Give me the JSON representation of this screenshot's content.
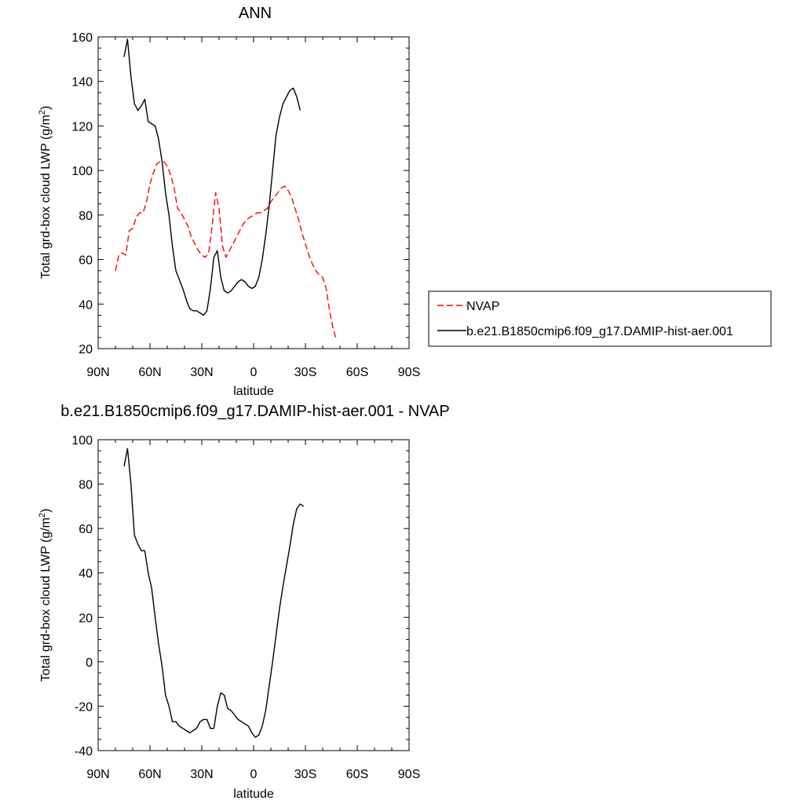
{
  "chart_data": [
    {
      "type": "line",
      "title": "ANN",
      "xlabel": "latitude",
      "ylabel": "Total grd-box cloud LWP (g/m",
      "ylabel_sup": "2",
      "ylabel_tail": ")",
      "xlim": [
        90,
        -90
      ],
      "ylim": [
        20,
        160
      ],
      "x_ticks": [
        90,
        60,
        30,
        0,
        -30,
        -60,
        -90
      ],
      "x_tick_labels": [
        "90N",
        "60N",
        "30N",
        "0",
        "30S",
        "60S",
        "90S"
      ],
      "y_ticks": [
        20,
        40,
        60,
        80,
        100,
        120,
        140,
        160
      ],
      "y_tick_labels": [
        "20",
        "40",
        "60",
        "80",
        "100",
        "120",
        "140",
        "160"
      ],
      "grid": false,
      "legend_position": "right",
      "series": [
        {
          "name": "NVAP",
          "color": "#ff0000",
          "style": "dashed",
          "points": [
            [
              80,
              55
            ],
            [
              78,
              62
            ],
            [
              76,
              63
            ],
            [
              74,
              62
            ],
            [
              72,
              73
            ],
            [
              70,
              74
            ],
            [
              68,
              79
            ],
            [
              66,
              81
            ],
            [
              64,
              81
            ],
            [
              62,
              86
            ],
            [
              60,
              94
            ],
            [
              58,
              99
            ],
            [
              56,
              103
            ],
            [
              54,
              104
            ],
            [
              52,
              104
            ],
            [
              50,
              102
            ],
            [
              48,
              98
            ],
            [
              46,
              92
            ],
            [
              44,
              83
            ],
            [
              42,
              81
            ],
            [
              40,
              78
            ],
            [
              38,
              75
            ],
            [
              36,
              70
            ],
            [
              34,
              67
            ],
            [
              32,
              64
            ],
            [
              30,
              62
            ],
            [
              28,
              61
            ],
            [
              26,
              63
            ],
            [
              24,
              75
            ],
            [
              22,
              90
            ],
            [
              20,
              83
            ],
            [
              18,
              66
            ],
            [
              16,
              61
            ],
            [
              14,
              64
            ],
            [
              12,
              67
            ],
            [
              10,
              70
            ],
            [
              8,
              73
            ],
            [
              6,
              76
            ],
            [
              4,
              78
            ],
            [
              2,
              79
            ],
            [
              0,
              80
            ],
            [
              -2,
              81
            ],
            [
              -4,
              81
            ],
            [
              -6,
              82
            ],
            [
              -8,
              83
            ],
            [
              -10,
              86
            ],
            [
              -12,
              88
            ],
            [
              -14,
              90
            ],
            [
              -16,
              92
            ],
            [
              -18,
              93
            ],
            [
              -20,
              91
            ],
            [
              -22,
              88
            ],
            [
              -24,
              83
            ],
            [
              -26,
              78
            ],
            [
              -28,
              72
            ],
            [
              -30,
              67
            ],
            [
              -32,
              62
            ],
            [
              -34,
              58
            ],
            [
              -36,
              55
            ],
            [
              -38,
              53
            ],
            [
              -40,
              52
            ],
            [
              -42,
              47
            ],
            [
              -44,
              37
            ],
            [
              -46,
              29
            ],
            [
              -48,
              24
            ]
          ]
        },
        {
          "name": "b.e21.B1850cmip6.f09_g17.DAMIP-hist-aer.001",
          "color": "#000000",
          "style": "solid",
          "points": [
            [
              75,
              151
            ],
            [
              73,
              159
            ],
            [
              71,
              142
            ],
            [
              69,
              130
            ],
            [
              67,
              127
            ],
            [
              65,
              129
            ],
            [
              63,
              132
            ],
            [
              61,
              122
            ],
            [
              59,
              121
            ],
            [
              57,
              120
            ],
            [
              55,
              114
            ],
            [
              53,
              104
            ],
            [
              51,
              90
            ],
            [
              49,
              80
            ],
            [
              47,
              66
            ],
            [
              45,
              55
            ],
            [
              43,
              51
            ],
            [
              41,
              47
            ],
            [
              39,
              42
            ],
            [
              37,
              38
            ],
            [
              35,
              37
            ],
            [
              33,
              37
            ],
            [
              31,
              36
            ],
            [
              29,
              35
            ],
            [
              27,
              37
            ],
            [
              25,
              47
            ],
            [
              23,
              61
            ],
            [
              21,
              64
            ],
            [
              19,
              52
            ],
            [
              17,
              46
            ],
            [
              15,
              45
            ],
            [
              13,
              46
            ],
            [
              11,
              48
            ],
            [
              9,
              50
            ],
            [
              7,
              51
            ],
            [
              5,
              50
            ],
            [
              3,
              48
            ],
            [
              1,
              47
            ],
            [
              -1,
              48
            ],
            [
              -3,
              52
            ],
            [
              -5,
              60
            ],
            [
              -7,
              71
            ],
            [
              -9,
              84
            ],
            [
              -11,
              100
            ],
            [
              -13,
              116
            ],
            [
              -15,
              124
            ],
            [
              -17,
              130
            ],
            [
              -19,
              133
            ],
            [
              -21,
              136
            ],
            [
              -23,
              137
            ],
            [
              -25,
              133
            ],
            [
              -27,
              127
            ]
          ]
        }
      ]
    },
    {
      "type": "line",
      "title": "b.e21.B1850cmip6.f09_g17.DAMIP-hist-aer.001 - NVAP",
      "xlabel": "latitude",
      "ylabel": "Total grd-box cloud LWP (g/m",
      "ylabel_sup": "2",
      "ylabel_tail": ")",
      "xlim": [
        90,
        -90
      ],
      "ylim": [
        -40,
        100
      ],
      "x_ticks": [
        90,
        60,
        30,
        0,
        -30,
        -60,
        -90
      ],
      "x_tick_labels": [
        "90N",
        "60N",
        "30N",
        "0",
        "30S",
        "60S",
        "90S"
      ],
      "y_ticks": [
        -40,
        -20,
        0,
        20,
        40,
        60,
        80,
        100
      ],
      "y_tick_labels": [
        "-40",
        "-20",
        "0",
        "20",
        "40",
        "60",
        "80",
        "100"
      ],
      "grid": false,
      "series": [
        {
          "color": "#000000",
          "style": "solid",
          "points": [
            [
              75,
              88
            ],
            [
              73,
              96
            ],
            [
              71,
              80
            ],
            [
              69,
              57
            ],
            [
              67,
              53
            ],
            [
              65,
              50
            ],
            [
              63,
              50
            ],
            [
              61,
              40
            ],
            [
              59,
              33
            ],
            [
              57,
              20
            ],
            [
              55,
              8
            ],
            [
              53,
              -2
            ],
            [
              51,
              -15
            ],
            [
              49,
              -20
            ],
            [
              47,
              -27
            ],
            [
              45,
              -27
            ],
            [
              43,
              -29
            ],
            [
              41,
              -30
            ],
            [
              39,
              -31
            ],
            [
              37,
              -32
            ],
            [
              35,
              -31
            ],
            [
              33,
              -30
            ],
            [
              31,
              -27
            ],
            [
              29,
              -26
            ],
            [
              27,
              -26
            ],
            [
              25,
              -30
            ],
            [
              23,
              -30
            ],
            [
              21,
              -20
            ],
            [
              19,
              -14
            ],
            [
              17,
              -15
            ],
            [
              15,
              -21
            ],
            [
              13,
              -22
            ],
            [
              11,
              -24
            ],
            [
              9,
              -26
            ],
            [
              7,
              -27
            ],
            [
              5,
              -28
            ],
            [
              3,
              -29
            ],
            [
              1,
              -32
            ],
            [
              -1,
              -34
            ],
            [
              -3,
              -33
            ],
            [
              -5,
              -29
            ],
            [
              -7,
              -22
            ],
            [
              -9,
              -11
            ],
            [
              -11,
              0
            ],
            [
              -13,
              12
            ],
            [
              -15,
              24
            ],
            [
              -17,
              34
            ],
            [
              -19,
              43
            ],
            [
              -21,
              52
            ],
            [
              -23,
              62
            ],
            [
              -25,
              69
            ],
            [
              -27,
              71
            ],
            [
              -29,
              70
            ]
          ]
        }
      ]
    }
  ]
}
